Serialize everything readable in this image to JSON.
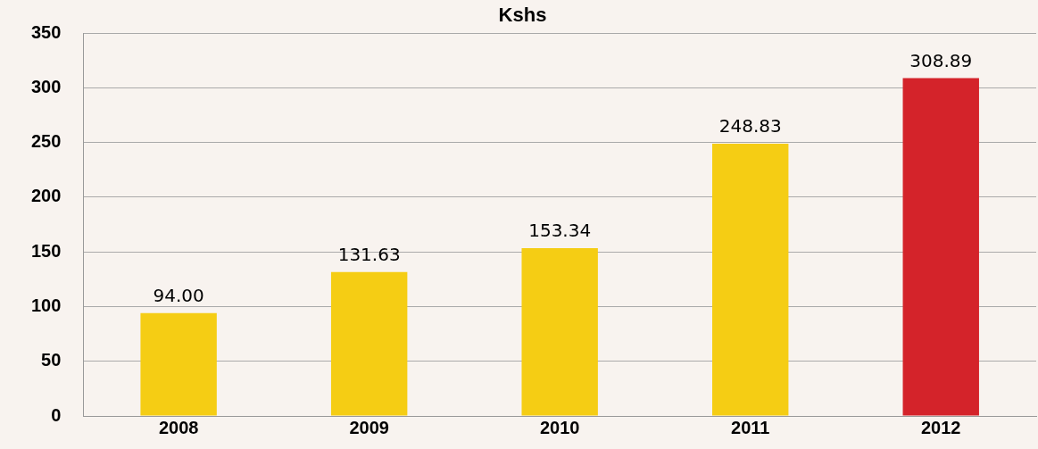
{
  "chart_data": {
    "type": "bar",
    "title": "Kshs",
    "categories": [
      "2008",
      "2009",
      "2010",
      "2011",
      "2012"
    ],
    "values": [
      94.0,
      131.63,
      153.34,
      248.83,
      308.89
    ],
    "colors": [
      "#f5cd14",
      "#f5cd14",
      "#f5cd14",
      "#f5cd14",
      "#d4232a"
    ],
    "value_labels": [
      "94.00",
      "131.63",
      "153.34",
      "248.83",
      "308.89"
    ],
    "ylim": [
      0,
      350
    ],
    "yticks": [
      0,
      50,
      100,
      150,
      200,
      250,
      300,
      350
    ],
    "grid": "y",
    "legend": false
  }
}
